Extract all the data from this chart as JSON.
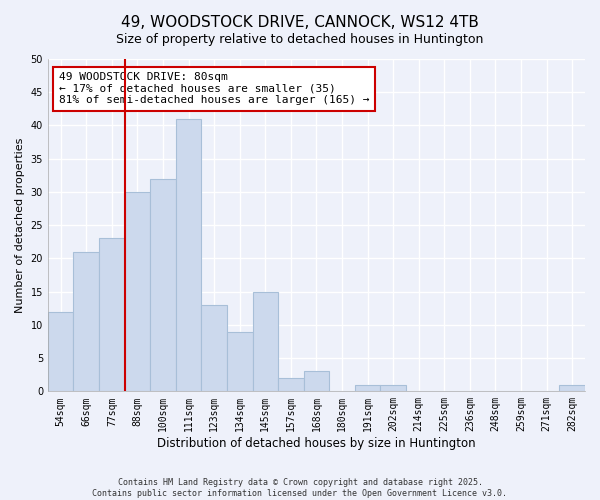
{
  "title": "49, WOODSTOCK DRIVE, CANNOCK, WS12 4TB",
  "subtitle": "Size of property relative to detached houses in Huntington",
  "xlabel": "Distribution of detached houses by size in Huntington",
  "ylabel": "Number of detached properties",
  "categories": [
    "54sqm",
    "66sqm",
    "77sqm",
    "88sqm",
    "100sqm",
    "111sqm",
    "123sqm",
    "134sqm",
    "145sqm",
    "157sqm",
    "168sqm",
    "180sqm",
    "191sqm",
    "202sqm",
    "214sqm",
    "225sqm",
    "236sqm",
    "248sqm",
    "259sqm",
    "271sqm",
    "282sqm"
  ],
  "values": [
    12,
    21,
    23,
    30,
    32,
    41,
    13,
    9,
    15,
    2,
    3,
    0,
    1,
    1,
    0,
    0,
    0,
    0,
    0,
    0,
    1
  ],
  "bar_color": "#ccd9ed",
  "bar_edge_color": "#a8bfd8",
  "property_line_color": "#cc0000",
  "annotation_text": "49 WOODSTOCK DRIVE: 80sqm\n← 17% of detached houses are smaller (35)\n81% of semi-detached houses are larger (165) →",
  "annotation_box_color": "white",
  "annotation_box_edge": "#cc0000",
  "ylim": [
    0,
    50
  ],
  "yticks": [
    0,
    5,
    10,
    15,
    20,
    25,
    30,
    35,
    40,
    45,
    50
  ],
  "footer_line1": "Contains HM Land Registry data © Crown copyright and database right 2025.",
  "footer_line2": "Contains public sector information licensed under the Open Government Licence v3.0.",
  "background_color": "#eef1fa",
  "grid_color": "white",
  "title_fontsize": 11,
  "tick_fontsize": 7,
  "prop_line_index": 2.5
}
